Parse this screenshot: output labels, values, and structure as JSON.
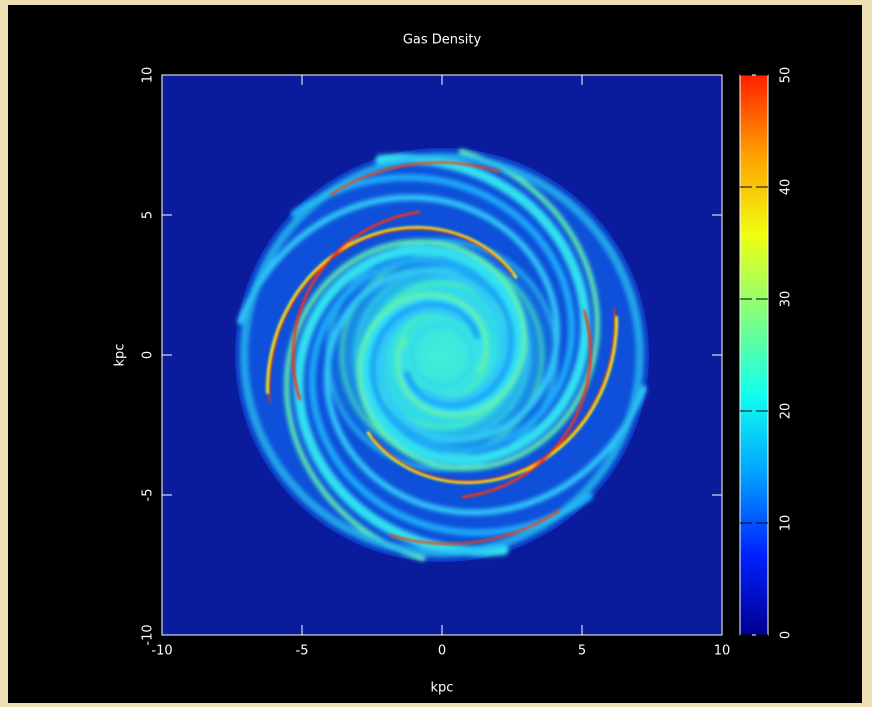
{
  "chart_data": {
    "type": "heatmap",
    "title": "Gas Density",
    "x_label": "kpc",
    "y_label": "kpc",
    "xlim": [
      -10,
      10
    ],
    "ylim": [
      -10,
      10
    ],
    "xticks": [
      -10,
      -5,
      0,
      5,
      10
    ],
    "yticks": [
      -10,
      -5,
      0,
      5,
      10
    ],
    "colorbar": {
      "lim": [
        0,
        50
      ],
      "ticks": [
        0,
        10,
        20,
        30,
        40,
        50
      ],
      "colors": [
        "#00008f",
        "#0020ff",
        "#00a0ff",
        "#10ffef",
        "#80ff80",
        "#f0ff10",
        "#ffa000",
        "#ff2000"
      ]
    }
  }
}
